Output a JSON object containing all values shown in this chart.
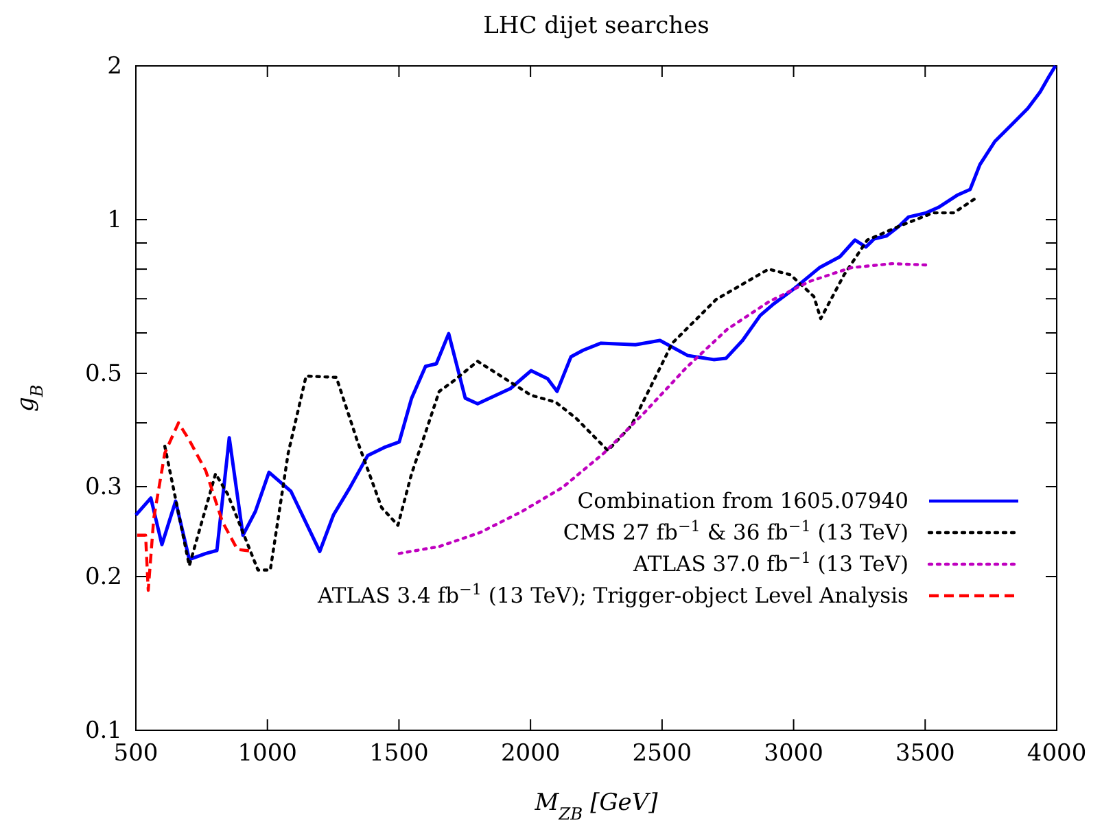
{
  "chart_data": {
    "type": "line",
    "title": "LHC dijet searches",
    "xlabel": "M$_{Z}$$_{B}$ [GeV]",
    "ylabel": "g$_{B}$",
    "log": "y",
    "xlim": [
      500,
      4000
    ],
    "xticks": [
      500,
      1000,
      1500,
      2000,
      2500,
      3000,
      3500,
      4000
    ],
    "ylim": [
      0.1,
      2
    ],
    "yticks": [
      0.1,
      0.2,
      0.3,
      {
        "value": 0.4,
        "label": null
      },
      0.5,
      {
        "value": 0.6,
        "label": null
      },
      {
        "value": 0.7,
        "label": null
      },
      {
        "value": 0.8,
        "label": null
      },
      {
        "value": 0.9,
        "label": null
      },
      1,
      2
    ],
    "legend": "bottom right",
    "grid": false,
    "series": [
      {
        "name": "Combination from 1605.07940",
        "color": "#0000ff",
        "line_style": "solid",
        "x": [
          500,
          557,
          599,
          651,
          703,
          766,
          808,
          855,
          907,
          954,
          1006,
          1089,
          1199,
          1251,
          1314,
          1381,
          1444,
          1501,
          1548,
          1601,
          1642,
          1689,
          1752,
          1799,
          1924,
          2002,
          2065,
          2101,
          2154,
          2200,
          2268,
          2399,
          2492,
          2597,
          2696,
          2743,
          2806,
          2873,
          2920,
          3004,
          3098,
          3176,
          3233,
          3275,
          3306,
          3353,
          3400,
          3437,
          3504,
          3551,
          3624,
          3671,
          3708,
          3765,
          3833,
          3890,
          3937,
          3969,
          3995
        ],
        "values": [
          0.264,
          0.285,
          0.231,
          0.281,
          0.216,
          0.222,
          0.225,
          0.374,
          0.241,
          0.268,
          0.32,
          0.294,
          0.224,
          0.264,
          0.299,
          0.345,
          0.358,
          0.367,
          0.447,
          0.516,
          0.522,
          0.598,
          0.447,
          0.436,
          0.467,
          0.506,
          0.488,
          0.461,
          0.539,
          0.555,
          0.573,
          0.569,
          0.58,
          0.542,
          0.532,
          0.535,
          0.58,
          0.649,
          0.681,
          0.734,
          0.805,
          0.846,
          0.912,
          0.884,
          0.917,
          0.929,
          0.97,
          1.012,
          1.031,
          1.057,
          1.118,
          1.146,
          1.281,
          1.423,
          1.542,
          1.651,
          1.778,
          1.9,
          2.0
        ]
      },
      {
        "name": "CMS 27 fb$^{−1}$ & 36 fb$^{−1}$ (13 TeV)",
        "color": "#000000",
        "line_style": "dotted",
        "x": [
          610,
          703,
          803,
          849,
          964,
          1011,
          1079,
          1147,
          1262,
          1340,
          1434,
          1496,
          1548,
          1601,
          1653,
          1705,
          1799,
          2002,
          2096,
          2174,
          2294,
          2383,
          2539,
          2706,
          2905,
          2988,
          3077,
          3103,
          3192,
          3280,
          3400,
          3530,
          3609,
          3687
        ],
        "values": [
          0.36,
          0.21,
          0.318,
          0.29,
          0.206,
          0.206,
          0.349,
          0.494,
          0.491,
          0.371,
          0.273,
          0.252,
          0.318,
          0.383,
          0.461,
          0.482,
          0.528,
          0.453,
          0.439,
          0.408,
          0.353,
          0.395,
          0.573,
          0.698,
          0.8,
          0.78,
          0.707,
          0.64,
          0.78,
          0.912,
          0.97,
          1.031,
          1.031,
          1.097
        ]
      },
      {
        "name": "ATLAS 37.0 fb$^{−1}$ (13 TeV)",
        "color": "#bf00bf",
        "line_style": "dotted",
        "x": [
          1501,
          1653,
          1809,
          1966,
          2122,
          2279,
          2435,
          2592,
          2748,
          2905,
          3061,
          3218,
          3374,
          3504
        ],
        "values": [
          0.222,
          0.229,
          0.244,
          0.268,
          0.299,
          0.349,
          0.42,
          0.513,
          0.61,
          0.69,
          0.757,
          0.805,
          0.82,
          0.815
        ]
      },
      {
        "name": "ATLAS 3.4 fb$^{−1}$ (13 TeV); Trigger-object Level Analysis",
        "color": "#ff0000",
        "line_style": "dashed",
        "x": [
          505,
          537,
          547,
          568,
          610,
          662,
          703,
          766,
          829,
          886,
          949
        ],
        "values": [
          0.241,
          0.241,
          0.188,
          0.26,
          0.349,
          0.4,
          0.37,
          0.322,
          0.256,
          0.226,
          0.224
        ]
      }
    ]
  }
}
